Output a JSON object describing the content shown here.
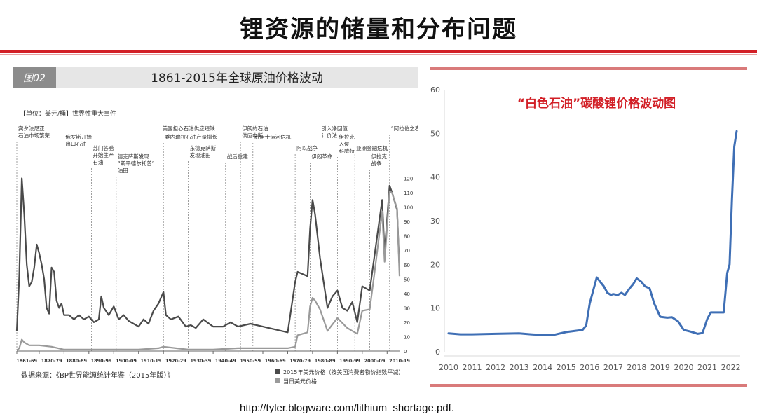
{
  "page": {
    "title": "锂资源的储量和分布问题",
    "source_url": "http://tyler.blogware.com/lithium_shortage.pdf."
  },
  "colors": {
    "rule": "#d21f26",
    "left_dark": "#4a4a4a",
    "left_light": "#9a9a9a",
    "right_line": "#3f6fb5",
    "right_title": "#d21f26"
  },
  "chart_data": [
    {
      "type": "line",
      "figure_tag": "图02",
      "title": "1861-2015年全球原油价格波动",
      "unit_label": "【单位：美元/桶】世界性重大事件",
      "source_note": "数据来源：《BP世界能源统计年鉴（2015年版）》",
      "x_tick_labels": [
        "1861-69",
        "1870-79",
        "1880-89",
        "1890-99",
        "1900-09",
        "1910-19",
        "1920-29",
        "1930-39",
        "1940-49",
        "1950-59",
        "1960-69",
        "1970-79",
        "1980-89",
        "1990-99",
        "2000-09",
        "2010-19"
      ],
      "x_range": [
        1861,
        2015
      ],
      "ylim": [
        0,
        130
      ],
      "y_ticks": [
        0,
        10,
        20,
        30,
        40,
        50,
        60,
        70,
        80,
        90,
        100,
        110,
        120
      ],
      "grid": false,
      "legend_position": "bottom-right",
      "events": [
        {
          "year": 1861,
          "text": [
            "宾夕法尼亚",
            "石油市场繁荣"
          ]
        },
        {
          "year": 1880,
          "text": [
            "俄罗斯开始",
            "出口石油"
          ]
        },
        {
          "year": 1891,
          "text": [
            "苏门答腊",
            "开始生产",
            "石油"
          ]
        },
        {
          "year": 1901,
          "text": [
            "德克萨斯发现",
            "“斯平德尔托普”",
            "油田"
          ]
        },
        {
          "year": 1919,
          "text": [
            "美国担心石油供应短缺"
          ]
        },
        {
          "year": 1920,
          "text": [
            "委内瑞拉石油产量增长"
          ]
        },
        {
          "year": 1930,
          "text": [
            "东德克萨斯",
            "发现油田"
          ]
        },
        {
          "year": 1945,
          "text": [
            "战后重建"
          ]
        },
        {
          "year": 1951,
          "text": [
            "伊朗的石油",
            "供应中断"
          ]
        },
        {
          "year": 1956,
          "text": [
            "苏伊士运河危机"
          ]
        },
        {
          "year": 1973,
          "text": [
            "阿以战争"
          ]
        },
        {
          "year": 1979,
          "text": [
            "伊朗革命"
          ]
        },
        {
          "year": 1983,
          "text": [
            "引入净回值",
            "计价法"
          ]
        },
        {
          "year": 1990,
          "text": [
            "伊拉克",
            "入侵",
            "科威特"
          ]
        },
        {
          "year": 1997,
          "text": [
            "亚洲金融危机"
          ]
        },
        {
          "year": 2003,
          "text": [
            "伊拉克",
            "战争"
          ]
        },
        {
          "year": 2011,
          "text": [
            "“阿拉伯之春”"
          ]
        }
      ],
      "series": [
        {
          "name": "2015年美元价格（按美国消费者物价指数平减）",
          "x": [
            1861,
            1862,
            1863,
            1864,
            1865,
            1866,
            1867,
            1868,
            1869,
            1870,
            1871,
            1872,
            1873,
            1874,
            1875,
            1876,
            1877,
            1878,
            1879,
            1880,
            1882,
            1884,
            1886,
            1888,
            1890,
            1892,
            1894,
            1895,
            1896,
            1898,
            1900,
            1902,
            1904,
            1906,
            1908,
            1910,
            1912,
            1914,
            1916,
            1918,
            1920,
            1921,
            1923,
            1926,
            1929,
            1931,
            1933,
            1936,
            1940,
            1944,
            1947,
            1950,
            1955,
            1960,
            1965,
            1970,
            1973,
            1974,
            1978,
            1979,
            1980,
            1981,
            1983,
            1986,
            1988,
            1990,
            1992,
            1994,
            1996,
            1998,
            2000,
            2003,
            2005,
            2008,
            2009,
            2011,
            2012,
            2014,
            2015
          ],
          "values": [
            14,
            52,
            120,
            95,
            60,
            45,
            48,
            58,
            74,
            68,
            60,
            50,
            30,
            26,
            58,
            55,
            35,
            30,
            33,
            25,
            25,
            22,
            25,
            22,
            24,
            20,
            22,
            38,
            30,
            25,
            31,
            22,
            25,
            21,
            19,
            17,
            22,
            19,
            28,
            33,
            41,
            25,
            22,
            24,
            17,
            18,
            16,
            22,
            17,
            17,
            20,
            17,
            19,
            17,
            15,
            13,
            48,
            55,
            52,
            85,
            105,
            95,
            65,
            30,
            38,
            42,
            30,
            28,
            34,
            20,
            45,
            42,
            67,
            105,
            68,
            115,
            110,
            98,
            56
          ]
        },
        {
          "name": "当日美元价格",
          "x": [
            1861,
            1862,
            1863,
            1864,
            1866,
            1868,
            1870,
            1875,
            1880,
            1890,
            1900,
            1910,
            1918,
            1920,
            1925,
            1930,
            1940,
            1950,
            1960,
            1970,
            1973,
            1974,
            1978,
            1979,
            1980,
            1981,
            1983,
            1986,
            1990,
            1994,
            1998,
            2000,
            2003,
            2005,
            2008,
            2009,
            2011,
            2012,
            2014,
            2015
          ],
          "values": [
            0.5,
            2,
            8,
            6,
            4,
            4,
            4,
            3,
            1,
            1,
            1,
            1,
            2,
            3,
            2,
            1,
            1,
            2,
            2,
            2,
            3,
            11,
            13,
            31,
            37,
            35,
            29,
            14,
            23,
            16,
            12,
            28,
            29,
            55,
            97,
            62,
            111,
            110,
            99,
            52
          ]
        }
      ]
    },
    {
      "type": "line",
      "title": "“白色石油”碳酸锂价格波动图",
      "x_ticks": [
        "2010",
        "2011",
        "2012",
        "2013",
        "2014",
        "2015",
        "2016",
        "2017",
        "2018",
        "2019",
        "2020",
        "2021",
        "2022"
      ],
      "x_range": [
        2010,
        2022.4
      ],
      "ylim": [
        0,
        60
      ],
      "y_ticks": [
        0,
        10,
        20,
        30,
        40,
        50,
        60
      ],
      "grid": false,
      "series": [
        {
          "name": "",
          "x": [
            2010,
            2010.5,
            2011,
            2012,
            2013,
            2013.5,
            2014,
            2014.5,
            2015,
            2015.4,
            2015.7,
            2015.85,
            2016,
            2016.15,
            2016.3,
            2016.45,
            2016.6,
            2016.75,
            2016.9,
            2017,
            2017.2,
            2017.35,
            2017.5,
            2017.7,
            2017.85,
            2018,
            2018.2,
            2018.35,
            2018.55,
            2018.75,
            2019,
            2019.3,
            2019.5,
            2019.75,
            2020,
            2020.3,
            2020.6,
            2020.8,
            2021,
            2021.15,
            2021.3,
            2021.55,
            2021.7,
            2021.85,
            2021.95,
            2022.05,
            2022.15,
            2022.25
          ],
          "values": [
            4.2,
            4.0,
            4.0,
            4.1,
            4.2,
            4.0,
            3.8,
            3.9,
            4.5,
            4.8,
            5.0,
            6.0,
            11,
            14,
            17,
            16,
            15,
            13.5,
            13,
            13.2,
            13,
            13.5,
            13,
            14.5,
            15.5,
            16.8,
            16,
            15,
            14.5,
            11,
            8,
            7.8,
            7.9,
            7,
            5,
            4.6,
            4.1,
            4.3,
            7.5,
            9,
            9,
            9,
            9,
            18,
            20,
            35,
            47,
            50.5
          ]
        }
      ]
    }
  ]
}
